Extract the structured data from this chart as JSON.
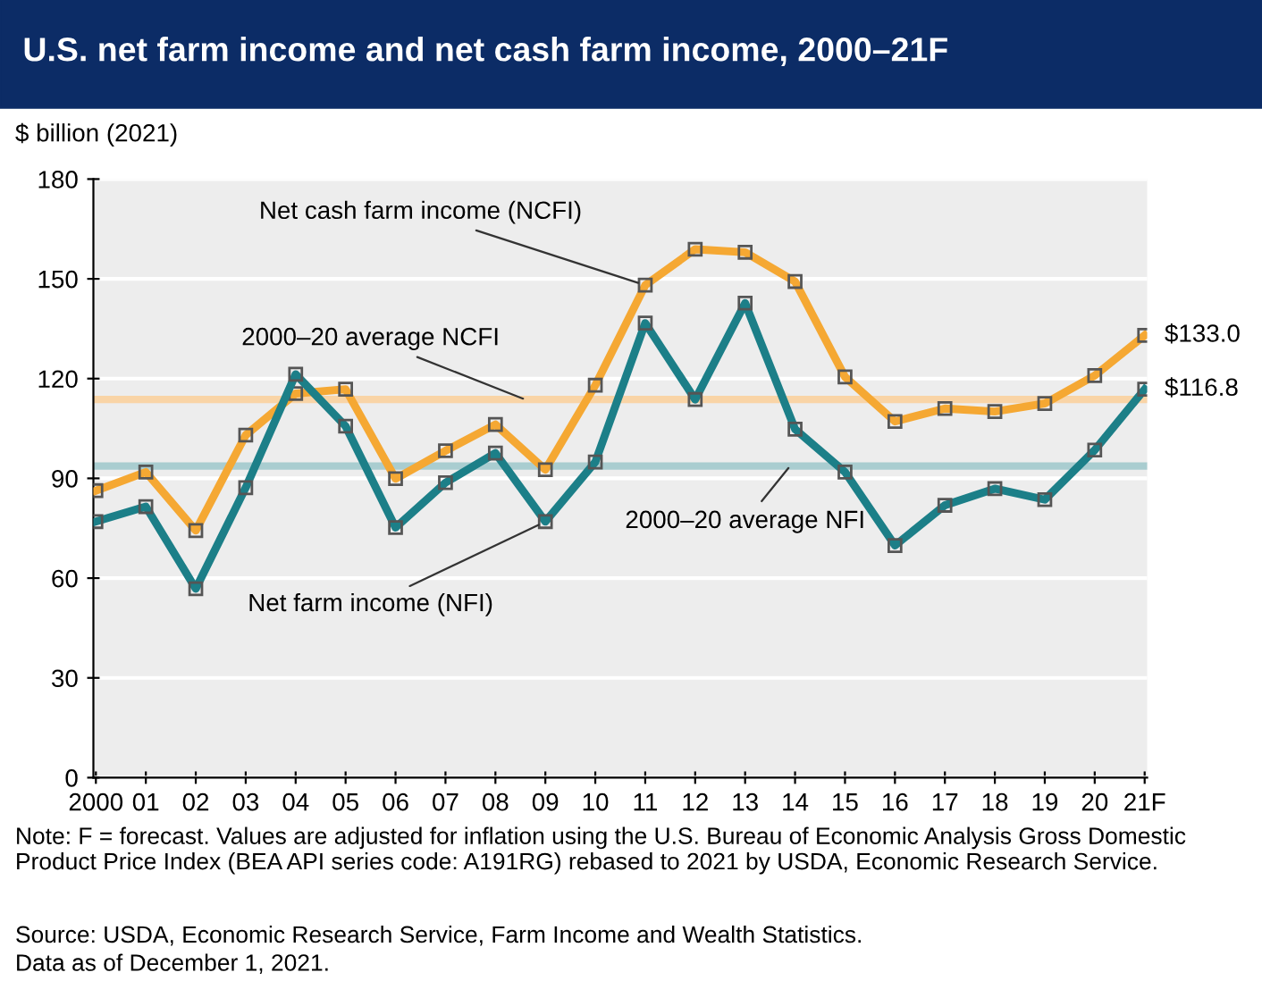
{
  "chart_data": {
    "type": "line",
    "title": "U.S. net farm income and net cash farm income, 2000–21F",
    "ylabel": "$ billion (2021)",
    "categories": [
      "2000",
      "01",
      "02",
      "03",
      "04",
      "05",
      "06",
      "07",
      "08",
      "09",
      "10",
      "11",
      "12",
      "13",
      "14",
      "15",
      "16",
      "17",
      "18",
      "19",
      "20",
      "21F"
    ],
    "series": [
      {
        "name": "Net cash farm income (NCFI)",
        "color": "#f5a833",
        "values": [
          86.3,
          91.9,
          74.3,
          103.0,
          115.5,
          116.8,
          89.9,
          98.3,
          106.2,
          92.6,
          118.0,
          148.1,
          158.9,
          158.0,
          149.2,
          120.5,
          107.1,
          111.0,
          110.1,
          112.5,
          120.9,
          133.0
        ],
        "value_labels": [
          null,
          null,
          null,
          null,
          null,
          null,
          null,
          null,
          null,
          null,
          null,
          null,
          null,
          null,
          null,
          null,
          null,
          null,
          null,
          null,
          null,
          "$133.0"
        ]
      },
      {
        "name": "Net farm income (NFI)",
        "color": "#1c7f88",
        "values": [
          77.0,
          81.5,
          56.8,
          87.2,
          121.3,
          105.7,
          75.2,
          88.7,
          97.6,
          77.0,
          94.9,
          136.7,
          113.7,
          142.7,
          104.8,
          91.9,
          69.8,
          81.9,
          86.9,
          83.6,
          98.5,
          116.8
        ],
        "value_labels": [
          null,
          null,
          null,
          null,
          null,
          null,
          null,
          null,
          null,
          null,
          null,
          null,
          null,
          null,
          null,
          null,
          null,
          null,
          null,
          null,
          null,
          "$116.8"
        ]
      }
    ],
    "ref_lines": [
      {
        "axis": "y",
        "value": 113.7,
        "label": "2000–20 average NCFI",
        "color": "#f9d4a6"
      },
      {
        "axis": "y",
        "value": 93.7,
        "label": "2000–20 average NFI",
        "color": "#a9cdd0"
      }
    ],
    "ylim": [
      0,
      180
    ],
    "yticks": [
      0,
      30,
      60,
      90,
      120,
      150,
      180
    ],
    "grid": "y",
    "legend": false,
    "marker": "square",
    "line_style": "solid",
    "annotations": [
      "Note: F = forecast. Values are adjusted for inflation using the U.S. Bureau of Economic Analysis Gross Domestic Product Price Index (BEA API series code: A191RG) rebased to 2021 by USDA, Economic Research Service.",
      "Source: USDA, Economic Research Service, Farm Income and Wealth Statistics.",
      "Data as of December 1, 2021."
    ]
  }
}
